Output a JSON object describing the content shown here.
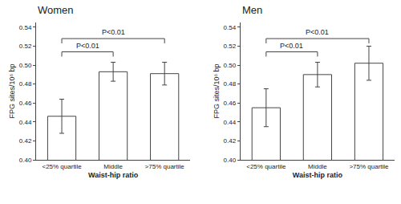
{
  "chart_data": [
    {
      "type": "bar",
      "title": "Women",
      "categories": [
        "<25% quartile",
        "Middle",
        ">75% quartile"
      ],
      "values": [
        0.446,
        0.493,
        0.491
      ],
      "errors": [
        0.018,
        0.01,
        0.012
      ],
      "color": "#ffffff",
      "xlabel": "Waist-hip ratio",
      "ylabel": "FPG sites/10⁶ bp",
      "ylim": [
        0.4,
        0.545
      ],
      "yticks": [
        {
          "value": 0.4,
          "label": "0.40"
        },
        0.42,
        0.44,
        0.46,
        0.48,
        {
          "value": 0.5,
          "label": "0.50"
        },
        0.52,
        0.54
      ],
      "grid": false,
      "annotations": [
        {
          "text": "P<0.01",
          "from": "<25% quartile",
          "to": "Middle",
          "y": 0.514
        },
        {
          "text": "P<0.01",
          "from": "<25% quartile",
          "to": ">75% quartile",
          "y": 0.528
        }
      ]
    },
    {
      "type": "bar",
      "title": "Men",
      "categories": [
        "<25% quartile",
        "Middle",
        ">75% quartile"
      ],
      "values": [
        0.455,
        0.49,
        0.502
      ],
      "errors": [
        0.02,
        0.013,
        0.018
      ],
      "color": "#ffffff",
      "xlabel": "Waist-hip ratio",
      "ylabel": "FPG sites/10⁶ bp",
      "ylim": [
        0.4,
        0.545
      ],
      "yticks": [
        {
          "value": 0.4,
          "label": "0.40"
        },
        0.42,
        0.44,
        0.46,
        0.48,
        {
          "value": 0.5,
          "label": "0.50"
        },
        0.52,
        0.54
      ],
      "grid": false,
      "annotations": [
        {
          "text": "P<0.01",
          "from": "<25% quartile",
          "to": "Middle",
          "y": 0.514
        },
        {
          "text": "P<0.01",
          "from": "<25% quartile",
          "to": ">75% quartile",
          "y": 0.528
        }
      ]
    }
  ]
}
